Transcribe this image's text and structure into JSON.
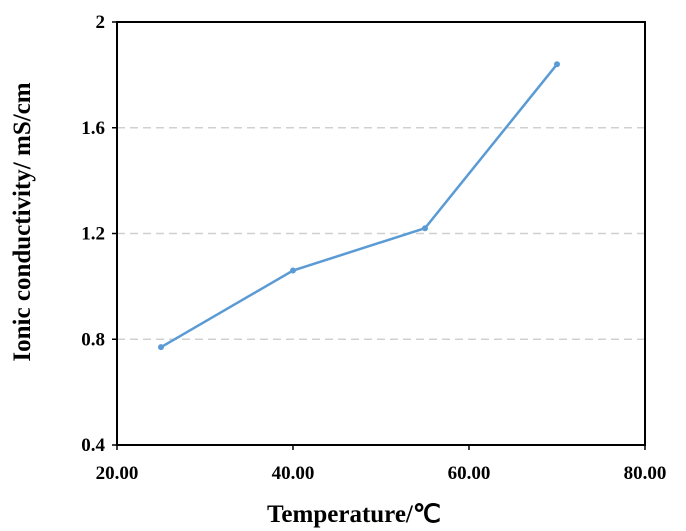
{
  "chart_data": {
    "type": "line",
    "x_label": "Temperature/℃",
    "y_label": "Ionic conductivity/ mS/cm",
    "x": [
      25,
      40,
      55,
      70
    ],
    "series": [
      {
        "color": "#5b9bd5",
        "values": [
          0.77,
          1.06,
          1.22,
          1.84
        ]
      }
    ],
    "xlim": [
      20,
      80
    ],
    "xticks": [
      {
        "value": 20,
        "label": "20.00"
      },
      {
        "value": 40,
        "label": "40.00"
      },
      {
        "value": 60,
        "label": "60.00"
      },
      {
        "value": 80,
        "label": "80.00"
      }
    ],
    "ylim": [
      0.4,
      2
    ],
    "yticks": [
      0.4,
      0.8,
      1.2,
      1.6,
      2
    ],
    "grid": true
  }
}
